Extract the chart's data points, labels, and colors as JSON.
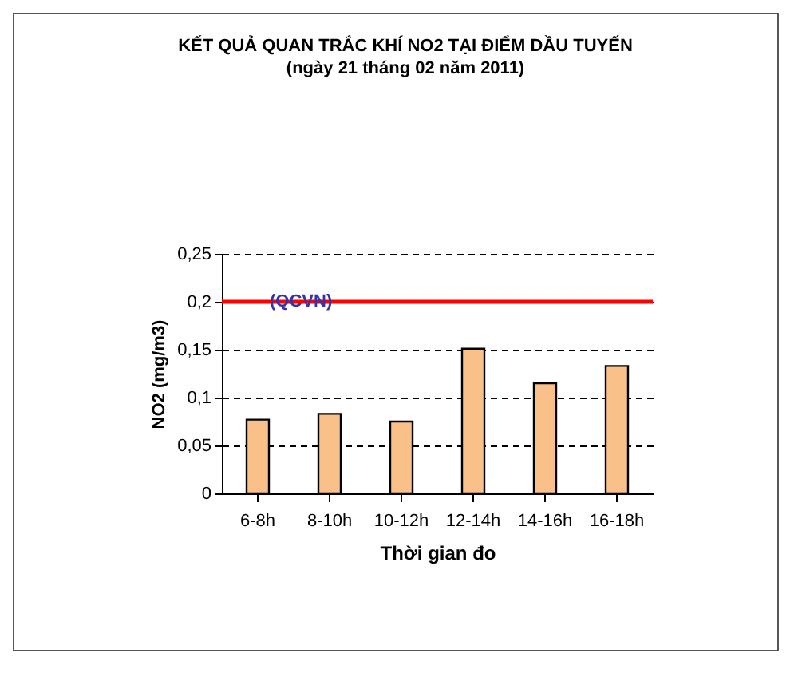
{
  "chart_data": {
    "type": "bar",
    "title": "KẾT QUẢ QUAN TRẮC KHÍ NO2 TẠI ĐIỂM DẦU TUYẾN",
    "subtitle": "(ngày 21 tháng 02 năm 2011)",
    "xlabel": "Thời gian đo",
    "ylabel": "NO2 (mg/m3)",
    "categories": [
      "6-8h",
      "8-10h",
      "10-12h",
      "12-14h",
      "14-16h",
      "16-18h"
    ],
    "values": [
      0.077,
      0.083,
      0.075,
      0.151,
      0.115,
      0.133
    ],
    "color": "#f9c08a",
    "ylim": [
      0,
      0.25
    ],
    "yticks": [
      {
        "value": 0,
        "label": "0"
      },
      {
        "value": 0.05,
        "label": "0,05"
      },
      {
        "value": 0.1,
        "label": "0,1"
      },
      {
        "value": 0.15,
        "label": "0,15"
      },
      {
        "value": 0.2,
        "label": "0,2"
      },
      {
        "value": 0.25,
        "label": "0,25"
      }
    ],
    "grid": "y",
    "ref_lines": [
      {
        "axis": "y",
        "value": 0.2,
        "label": "(QCVN)",
        "color": "#ff0000"
      }
    ]
  }
}
